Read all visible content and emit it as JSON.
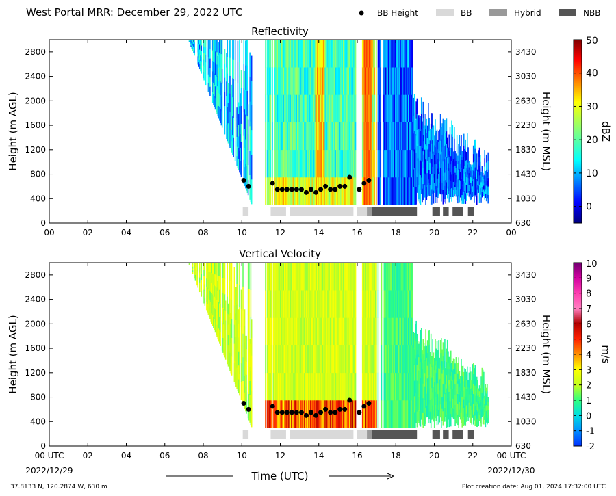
{
  "header": {
    "title": "West Portal MRR:  December 29, 2022 UTC",
    "legend": [
      {
        "label": "BB Height",
        "marker": "dot",
        "color": "#000000"
      },
      {
        "label": "BB",
        "marker": "box",
        "color": "#d9d9d9"
      },
      {
        "label": "Hybrid",
        "marker": "box",
        "color": "#999999"
      },
      {
        "label": "NBB",
        "marker": "box",
        "color": "#555555"
      }
    ]
  },
  "footer": {
    "location": "37.8133 N, 120.2874 W, 630 m",
    "creation_date": "Plot creation date: Aug 01, 2024 17:32:00 UTC",
    "xlabel": "Time (UTC)",
    "start_date": "2022/12/29",
    "end_date": "2022/12/30"
  },
  "chart_data": [
    {
      "type": "heatmap",
      "title": "Reflectivity",
      "ylabel": "Height (m AGL)",
      "y2label": "Height (m MSL)",
      "colorbar_label": "dBZ",
      "xlim": [
        0,
        24
      ],
      "ylim": [
        0,
        3000
      ],
      "xticks": [
        "00",
        "02",
        "04",
        "06",
        "08",
        "10",
        "12",
        "14",
        "16",
        "18",
        "20",
        "22",
        "00"
      ],
      "yticks": [
        0,
        400,
        800,
        1200,
        1600,
        2000,
        2400,
        2800
      ],
      "y2ticks": [
        630,
        1030,
        1430,
        1830,
        2230,
        2630,
        3030,
        3430
      ],
      "colorbar_ticks": [
        0,
        10,
        20,
        30,
        40,
        50
      ],
      "colorbar_range": [
        -5,
        50
      ],
      "colormap": "jet"
    },
    {
      "type": "heatmap",
      "title": "Vertical Velocity",
      "ylabel": "Height (m AGL)",
      "y2label": "Height (m MSL)",
      "colorbar_label": "m/s",
      "xlim": [
        0,
        24
      ],
      "ylim": [
        0,
        3000
      ],
      "xticks": [
        "00 UTC",
        "02",
        "04",
        "06",
        "08",
        "10",
        "12",
        "14",
        "16",
        "18",
        "20",
        "22",
        "00 UTC"
      ],
      "yticks": [
        0,
        400,
        800,
        1200,
        1600,
        2000,
        2400,
        2800
      ],
      "y2ticks": [
        630,
        1030,
        1430,
        1830,
        2230,
        2630,
        3030,
        3430
      ],
      "colorbar_ticks": [
        -2,
        -1,
        0,
        1,
        2,
        3,
        4,
        5,
        6,
        7,
        8,
        9,
        10
      ],
      "colorbar_range": [
        -2,
        10
      ],
      "colormap": "velocity"
    }
  ],
  "bb_heights": [
    {
      "t": 10.1,
      "h": 700
    },
    {
      "t": 10.35,
      "h": 600
    },
    {
      "t": 11.6,
      "h": 650
    },
    {
      "t": 11.85,
      "h": 550
    },
    {
      "t": 12.1,
      "h": 550
    },
    {
      "t": 12.35,
      "h": 550
    },
    {
      "t": 12.6,
      "h": 550
    },
    {
      "t": 12.85,
      "h": 550
    },
    {
      "t": 13.1,
      "h": 550
    },
    {
      "t": 13.35,
      "h": 500
    },
    {
      "t": 13.6,
      "h": 550
    },
    {
      "t": 13.85,
      "h": 500
    },
    {
      "t": 14.1,
      "h": 550
    },
    {
      "t": 14.35,
      "h": 600
    },
    {
      "t": 14.6,
      "h": 550
    },
    {
      "t": 14.85,
      "h": 550
    },
    {
      "t": 15.1,
      "h": 600
    },
    {
      "t": 15.35,
      "h": 600
    },
    {
      "t": 15.6,
      "h": 750
    },
    {
      "t": 16.1,
      "h": 550
    },
    {
      "t": 16.35,
      "h": 650
    },
    {
      "t": 16.6,
      "h": 700
    }
  ],
  "bb_type_segments": [
    {
      "start": 10.05,
      "end": 10.35,
      "type": "BB"
    },
    {
      "start": 11.5,
      "end": 12.3,
      "type": "BB"
    },
    {
      "start": 12.5,
      "end": 15.8,
      "type": "BB"
    },
    {
      "start": 16.0,
      "end": 16.5,
      "type": "BB"
    },
    {
      "start": 16.5,
      "end": 16.75,
      "type": "Hybrid"
    },
    {
      "start": 16.75,
      "end": 19.1,
      "type": "NBB"
    },
    {
      "start": 19.9,
      "end": 20.3,
      "type": "NBB"
    },
    {
      "start": 20.45,
      "end": 20.75,
      "type": "NBB"
    },
    {
      "start": 20.95,
      "end": 21.5,
      "type": "NBB"
    },
    {
      "start": 21.75,
      "end": 22.05,
      "type": "NBB"
    }
  ]
}
